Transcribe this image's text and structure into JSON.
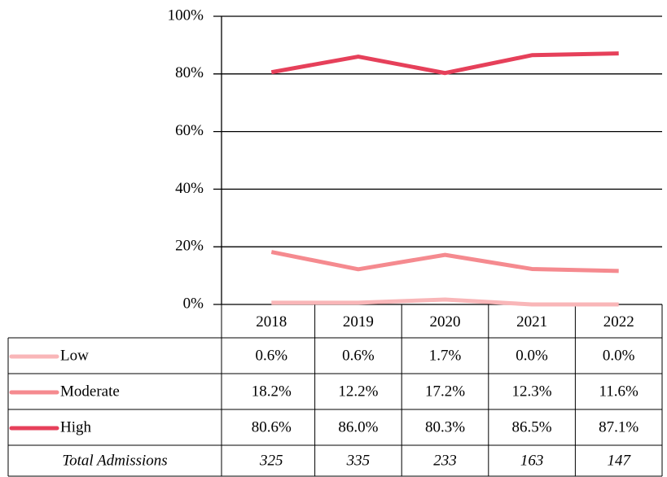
{
  "chart_data": {
    "type": "line",
    "categories": [
      "2018",
      "2019",
      "2020",
      "2021",
      "2022"
    ],
    "series": [
      {
        "name": "Low",
        "color": "#f9b6b8",
        "values": [
          0.6,
          0.6,
          1.7,
          0.0,
          0.0
        ],
        "value_labels": [
          "0.6%",
          "0.6%",
          "1.7%",
          "0.0%",
          "0.0%"
        ]
      },
      {
        "name": "Moderate",
        "color": "#f58a8f",
        "values": [
          18.2,
          12.2,
          17.2,
          12.3,
          11.6
        ],
        "value_labels": [
          "18.2%",
          "12.2%",
          "17.2%",
          "12.3%",
          "11.6%"
        ]
      },
      {
        "name": "High",
        "color": "#e6405a",
        "values": [
          80.6,
          86.0,
          80.3,
          86.5,
          87.1
        ],
        "value_labels": [
          "80.6%",
          "86.0%",
          "80.3%",
          "86.5%",
          "87.1%"
        ]
      }
    ],
    "totals": {
      "label": "Total Admissions",
      "values": [
        325,
        335,
        233,
        163,
        147
      ]
    },
    "ylim": [
      0,
      100
    ],
    "yticks": [
      {
        "value": 0,
        "label": "0%"
      },
      {
        "value": 20,
        "label": "20%"
      },
      {
        "value": 40,
        "label": "40%"
      },
      {
        "value": 60,
        "label": "60%"
      },
      {
        "value": 80,
        "label": "80%"
      },
      {
        "value": 100,
        "label": "100%"
      }
    ],
    "grid": true
  }
}
